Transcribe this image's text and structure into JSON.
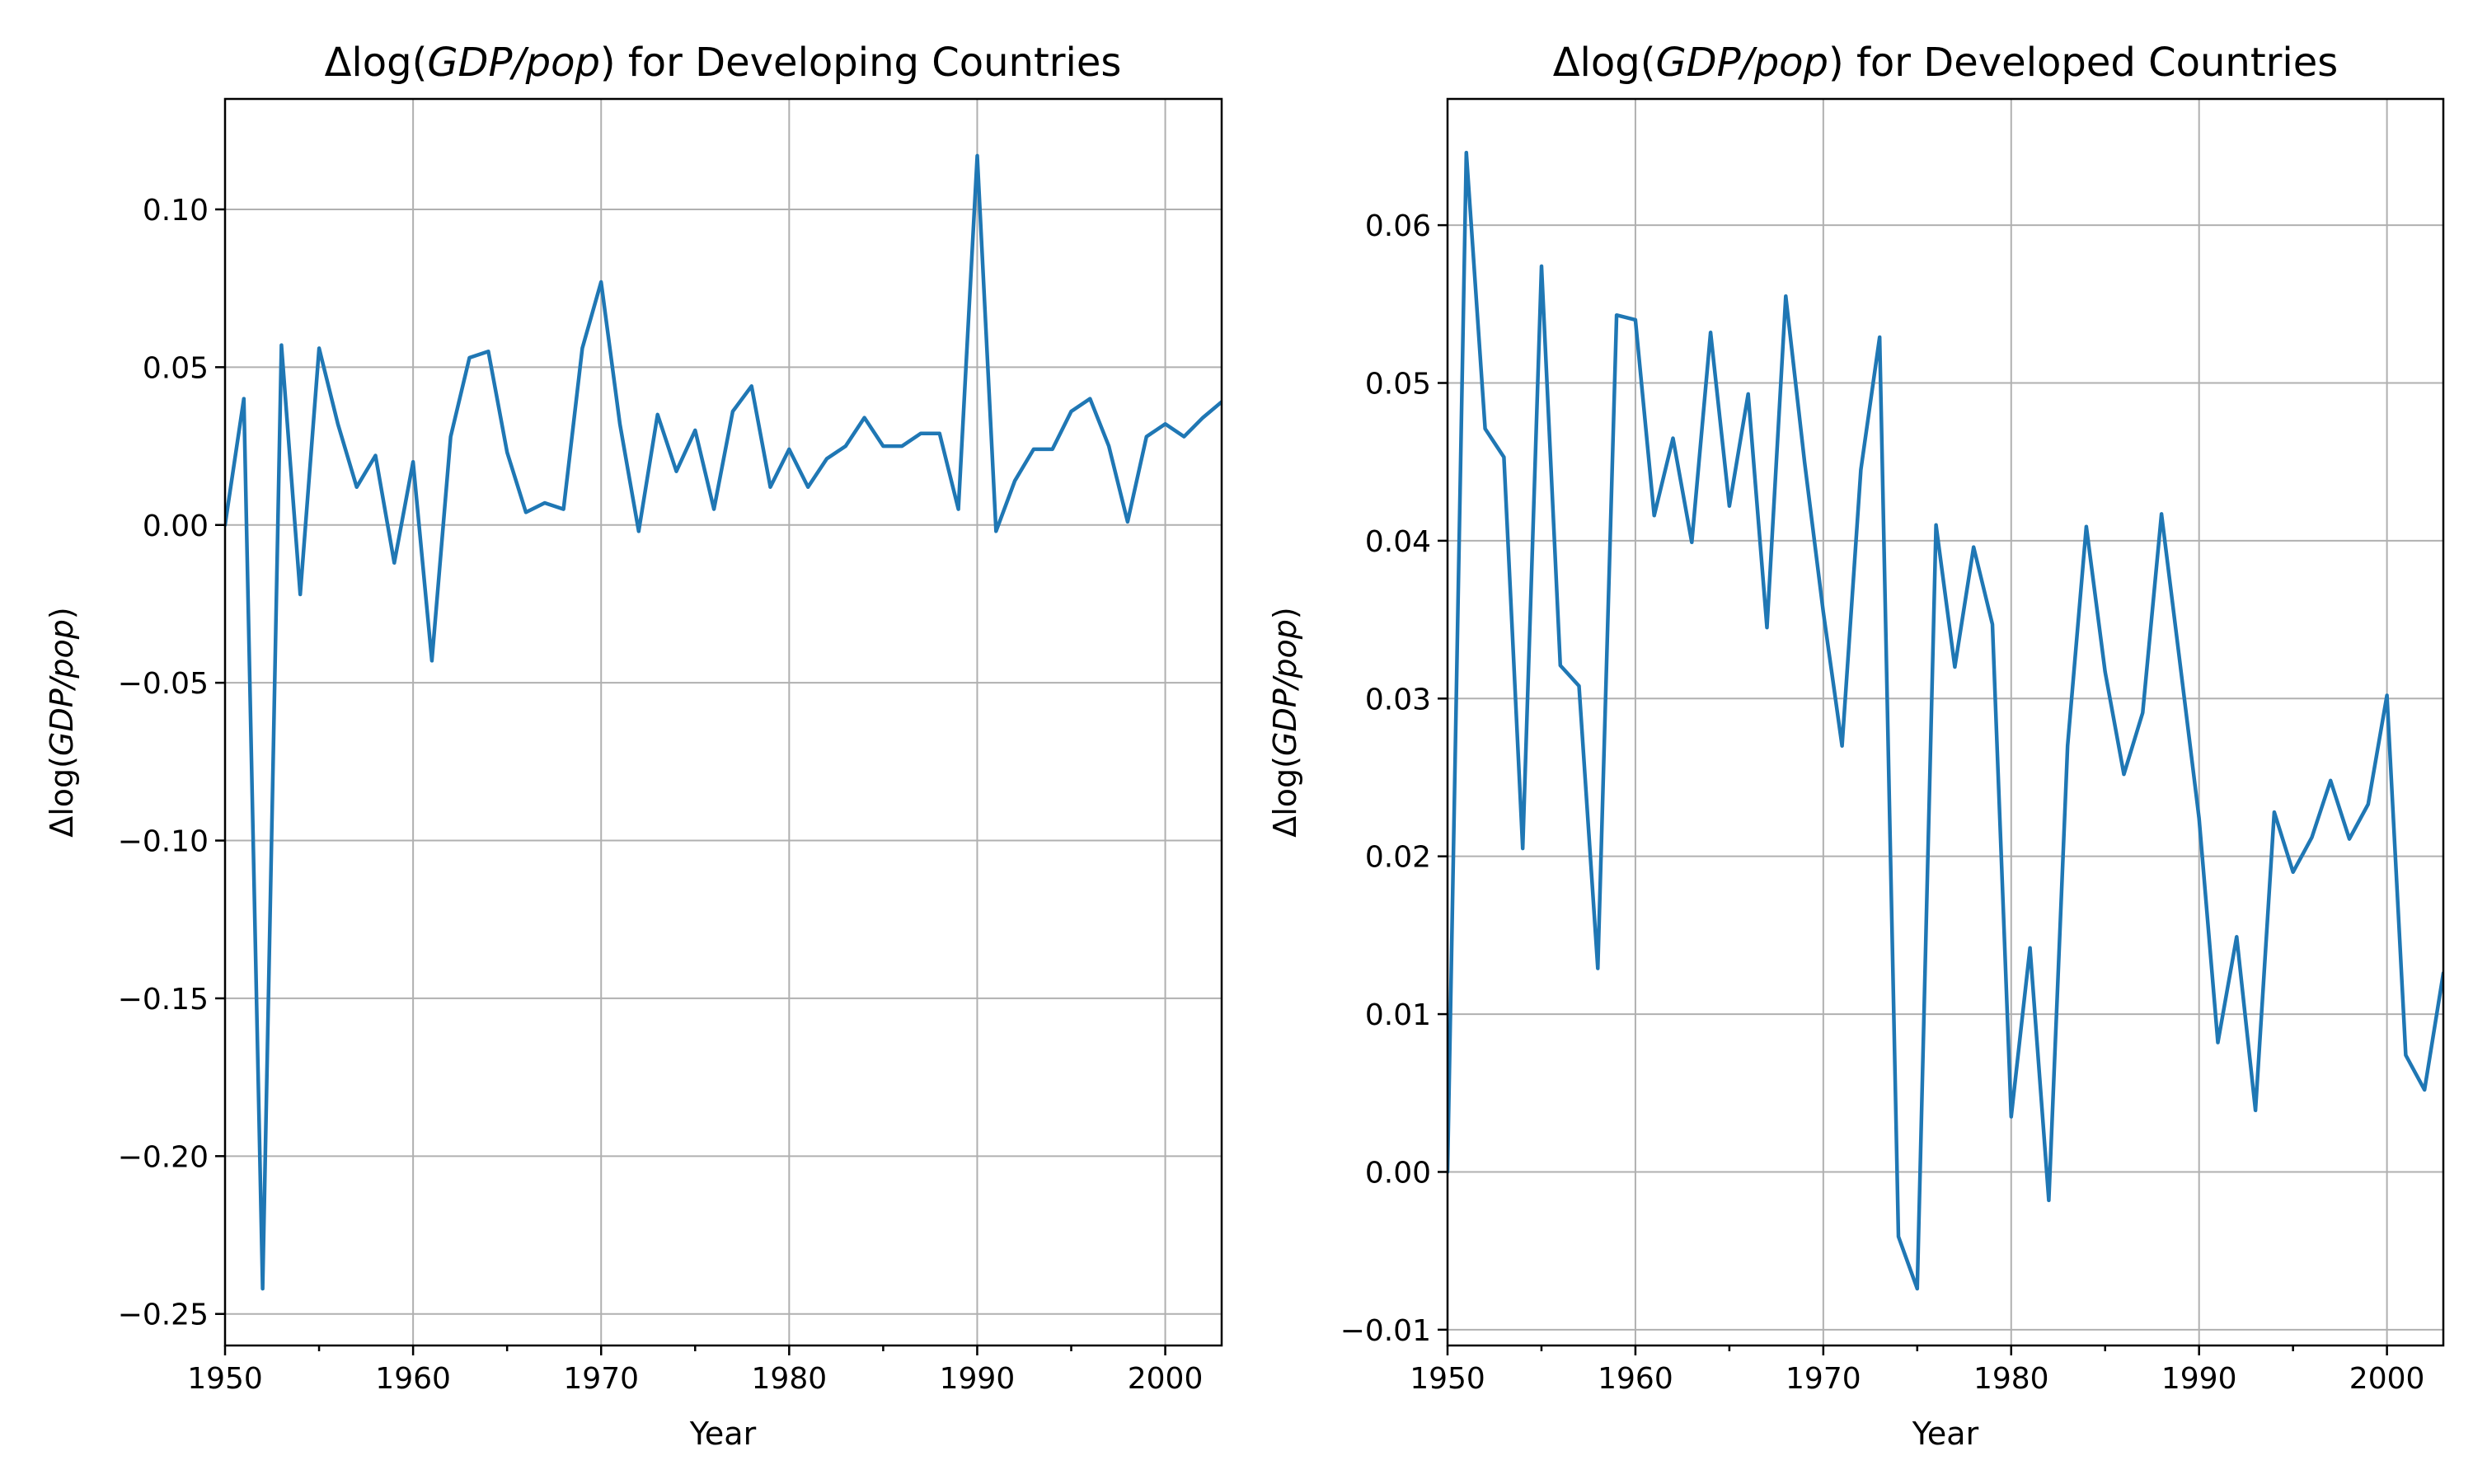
{
  "chart_data": [
    {
      "type": "line",
      "title_prefix": "Δlog(",
      "title_italic": "GDP/pop",
      "title_suffix": ") for Developing Countries",
      "xlabel": "Year",
      "ylabel_prefix": "Δlog(",
      "ylabel_italic": "GDP/pop",
      "ylabel_suffix": ")",
      "xlim": [
        1950,
        2003
      ],
      "ylim": [
        -0.26,
        0.135
      ],
      "xticks": [
        1950,
        1960,
        1970,
        1980,
        1990,
        2000
      ],
      "xtick_labels": [
        "1950",
        "1960",
        "1970",
        "1980",
        "1990",
        "2000"
      ],
      "yticks": [
        -0.25,
        -0.2,
        -0.15,
        -0.1,
        -0.05,
        0.0,
        0.05,
        0.1
      ],
      "ytick_labels": [
        "−0.25",
        "−0.20",
        "−0.15",
        "−0.10",
        "−0.05",
        "0.00",
        "0.05",
        "0.10"
      ],
      "grid": true,
      "color": "#1f77b4",
      "x": [
        1950,
        1951,
        1952,
        1953,
        1954,
        1955,
        1956,
        1957,
        1958,
        1959,
        1960,
        1961,
        1962,
        1963,
        1964,
        1965,
        1966,
        1967,
        1968,
        1969,
        1970,
        1971,
        1972,
        1973,
        1974,
        1975,
        1976,
        1977,
        1978,
        1979,
        1980,
        1981,
        1982,
        1983,
        1984,
        1985,
        1986,
        1987,
        1988,
        1989,
        1990,
        1991,
        1992,
        1993,
        1994,
        1995,
        1996,
        1997,
        1998,
        1999,
        2000,
        2001,
        2002,
        2003
      ],
      "y": [
        0.0,
        0.04,
        -0.242,
        0.057,
        -0.022,
        0.056,
        0.032,
        0.012,
        0.022,
        -0.012,
        0.02,
        -0.043,
        0.028,
        0.053,
        0.055,
        0.023,
        0.004,
        0.007,
        0.005,
        0.056,
        0.077,
        0.032,
        -0.002,
        0.035,
        0.017,
        0.03,
        0.005,
        0.036,
        0.044,
        0.012,
        0.024,
        0.012,
        0.021,
        0.025,
        0.034,
        0.025,
        0.025,
        0.029,
        0.029,
        0.005,
        0.117,
        -0.002,
        0.014,
        0.024,
        0.024,
        0.036,
        0.04,
        0.025,
        0.001,
        0.028,
        0.032,
        0.028,
        0.034,
        0.039
      ]
    },
    {
      "type": "line",
      "title_prefix": "Δlog(",
      "title_italic": "GDP/pop",
      "title_suffix": ") for Developed Countries",
      "xlabel": "Year",
      "ylabel_prefix": "Δlog(",
      "ylabel_italic": "GDP/pop",
      "ylabel_suffix": ")",
      "xlim": [
        1950,
        2003
      ],
      "ylim": [
        -0.011,
        0.068
      ],
      "xticks": [
        1950,
        1960,
        1970,
        1980,
        1990,
        2000
      ],
      "xtick_labels": [
        "1950",
        "1960",
        "1970",
        "1980",
        "1990",
        "2000"
      ],
      "yticks": [
        -0.01,
        0.0,
        0.01,
        0.02,
        0.03,
        0.04,
        0.05,
        0.06
      ],
      "ytick_labels": [
        "−0.01",
        "0.00",
        "0.01",
        "0.02",
        "0.03",
        "0.04",
        "0.05",
        "0.06"
      ],
      "grid": true,
      "color": "#1f77b4",
      "x": [
        1950,
        1951,
        1952,
        1953,
        1954,
        1955,
        1956,
        1957,
        1958,
        1959,
        1960,
        1961,
        1962,
        1963,
        1964,
        1965,
        1966,
        1967,
        1968,
        1969,
        1970,
        1971,
        1972,
        1973,
        1974,
        1975,
        1976,
        1977,
        1978,
        1979,
        1980,
        1981,
        1982,
        1983,
        1984,
        1985,
        1986,
        1987,
        1988,
        1989,
        1990,
        1991,
        1992,
        1993,
        1994,
        1995,
        1996,
        1997,
        1998,
        1999,
        2000,
        2001,
        2002,
        2003
      ],
      "y": [
        0.0,
        0.0646,
        0.0471,
        0.0453,
        0.0205,
        0.0574,
        0.0321,
        0.0308,
        0.0129,
        0.0543,
        0.054,
        0.0416,
        0.0465,
        0.0399,
        0.0532,
        0.0422,
        0.0493,
        0.0345,
        0.0555,
        0.045,
        0.0355,
        0.027,
        0.0445,
        0.0529,
        -0.0041,
        -0.0074,
        0.041,
        0.032,
        0.0396,
        0.0347,
        0.0035,
        0.0142,
        -0.0018,
        0.027,
        0.0409,
        0.0317,
        0.0252,
        0.0291,
        0.0417,
        0.0321,
        0.0224,
        0.0082,
        0.0149,
        0.0039,
        0.0228,
        0.019,
        0.0212,
        0.0248,
        0.0211,
        0.0233,
        0.0302,
        0.0074,
        0.0052,
        0.0126
      ]
    }
  ]
}
